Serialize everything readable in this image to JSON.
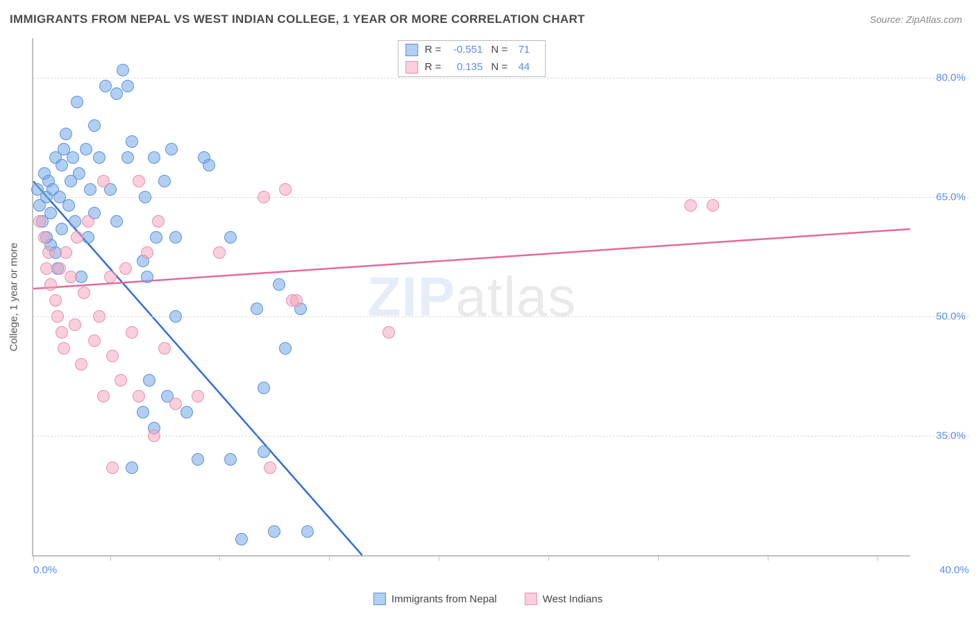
{
  "title": "IMMIGRANTS FROM NEPAL VS WEST INDIAN COLLEGE, 1 YEAR OR MORE CORRELATION CHART",
  "source": "Source: ZipAtlas.com",
  "yAxisTitle": "College, 1 year or more",
  "watermark": {
    "part1": "ZIP",
    "part2": "atlas"
  },
  "plot": {
    "xmin": 0.0,
    "xmax": 40.0,
    "ymin": 20.0,
    "ymax": 85.0,
    "xTickPositions": [
      0,
      3.5,
      8.5,
      13.5,
      18.5,
      23.5,
      28.5,
      33.5,
      38.5
    ],
    "xLabelLeft": "0.0%",
    "xLabelRight": "40.0%",
    "yGridlines": [
      35.0,
      50.0,
      65.0,
      80.0
    ],
    "yTickLabels": [
      "35.0%",
      "50.0%",
      "65.0%",
      "80.0%"
    ],
    "gridColor": "#d9d9d9",
    "axisColor": "#bfbfbf",
    "tickLabelColor": "#5b8de8",
    "background": "#ffffff"
  },
  "series": [
    {
      "name": "Immigrants from Nepal",
      "fillColor": "rgba(114,168,231,0.55)",
      "strokeColor": "#5a92d6",
      "lineColor": "#2f6fd0",
      "markerRadius": 9,
      "R": "-0.551",
      "N": "71",
      "trend": {
        "x1": 0.0,
        "y1": 67.0,
        "x2": 15.0,
        "y2": 20.0,
        "extendDashed": true
      },
      "points": [
        [
          0.2,
          66
        ],
        [
          0.3,
          64
        ],
        [
          0.4,
          62
        ],
        [
          0.5,
          68
        ],
        [
          0.6,
          60
        ],
        [
          0.6,
          65
        ],
        [
          0.7,
          67
        ],
        [
          0.8,
          63
        ],
        [
          0.8,
          59
        ],
        [
          0.9,
          66
        ],
        [
          1.0,
          58
        ],
        [
          1.0,
          70
        ],
        [
          1.1,
          56
        ],
        [
          1.2,
          65
        ],
        [
          1.3,
          69
        ],
        [
          1.3,
          61
        ],
        [
          1.4,
          71
        ],
        [
          1.5,
          73
        ],
        [
          1.6,
          64
        ],
        [
          1.7,
          67
        ],
        [
          1.8,
          70
        ],
        [
          1.9,
          62
        ],
        [
          2.0,
          77
        ],
        [
          2.1,
          68
        ],
        [
          2.2,
          55
        ],
        [
          2.4,
          71
        ],
        [
          2.5,
          60
        ],
        [
          2.6,
          66
        ],
        [
          2.8,
          63
        ],
        [
          2.8,
          74
        ],
        [
          3.0,
          70
        ],
        [
          3.3,
          79
        ],
        [
          3.5,
          66
        ],
        [
          3.8,
          62
        ],
        [
          3.8,
          78
        ],
        [
          4.1,
          81
        ],
        [
          4.3,
          70
        ],
        [
          4.3,
          79
        ],
        [
          4.5,
          72
        ],
        [
          4.5,
          31
        ],
        [
          5.0,
          57
        ],
        [
          5.0,
          38
        ],
        [
          5.1,
          65
        ],
        [
          5.2,
          55
        ],
        [
          5.3,
          42
        ],
        [
          5.5,
          70
        ],
        [
          5.5,
          36
        ],
        [
          5.6,
          60
        ],
        [
          6.0,
          67
        ],
        [
          6.1,
          40
        ],
        [
          6.3,
          71
        ],
        [
          6.5,
          50
        ],
        [
          6.5,
          60
        ],
        [
          7.0,
          38
        ],
        [
          7.5,
          32
        ],
        [
          7.8,
          70
        ],
        [
          8.0,
          69
        ],
        [
          9.0,
          60
        ],
        [
          9.0,
          32
        ],
        [
          9.5,
          22
        ],
        [
          10.2,
          51
        ],
        [
          10.5,
          41
        ],
        [
          10.5,
          33
        ],
        [
          11.0,
          23
        ],
        [
          11.2,
          54
        ],
        [
          11.5,
          46
        ],
        [
          12.2,
          51
        ],
        [
          12.5,
          23
        ]
      ]
    },
    {
      "name": "West Indians",
      "fillColor": "rgba(244,168,192,0.55)",
      "strokeColor": "#e88fb0",
      "lineColor": "#e36a9a",
      "markerRadius": 9,
      "R": "0.135",
      "N": "44",
      "trend": {
        "x1": 0.0,
        "y1": 53.5,
        "x2": 40.0,
        "y2": 61.0
      },
      "points": [
        [
          0.3,
          62
        ],
        [
          0.5,
          60
        ],
        [
          0.6,
          56
        ],
        [
          0.7,
          58
        ],
        [
          0.8,
          54
        ],
        [
          1.0,
          52
        ],
        [
          1.1,
          50
        ],
        [
          1.2,
          56
        ],
        [
          1.3,
          48
        ],
        [
          1.4,
          46
        ],
        [
          1.5,
          58
        ],
        [
          1.7,
          55
        ],
        [
          1.9,
          49
        ],
        [
          2.0,
          60
        ],
        [
          2.2,
          44
        ],
        [
          2.3,
          53
        ],
        [
          2.5,
          62
        ],
        [
          2.8,
          47
        ],
        [
          3.0,
          50
        ],
        [
          3.2,
          40
        ],
        [
          3.2,
          67
        ],
        [
          3.5,
          55
        ],
        [
          3.6,
          45
        ],
        [
          3.6,
          31
        ],
        [
          4.0,
          42
        ],
        [
          4.2,
          56
        ],
        [
          4.5,
          48
        ],
        [
          4.8,
          40
        ],
        [
          4.8,
          67
        ],
        [
          5.2,
          58
        ],
        [
          5.5,
          35
        ],
        [
          5.7,
          62
        ],
        [
          6.0,
          46
        ],
        [
          6.5,
          39
        ],
        [
          7.5,
          40
        ],
        [
          8.5,
          58
        ],
        [
          10.5,
          65
        ],
        [
          10.8,
          31
        ],
        [
          11.5,
          66
        ],
        [
          11.8,
          52
        ],
        [
          12.0,
          52
        ],
        [
          16.2,
          48
        ],
        [
          30.0,
          64
        ],
        [
          31.0,
          64
        ]
      ]
    }
  ],
  "legend": {
    "items": [
      {
        "label": "Immigrants from Nepal",
        "fill": "rgba(114,168,231,0.55)",
        "stroke": "#5a92d6"
      },
      {
        "label": "West Indians",
        "fill": "rgba(244,168,192,0.55)",
        "stroke": "#e88fb0"
      }
    ]
  }
}
